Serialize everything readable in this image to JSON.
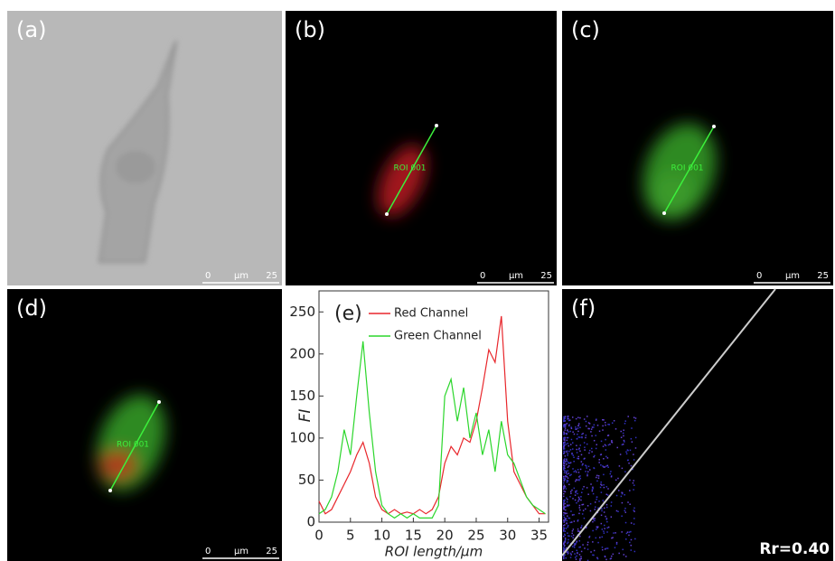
{
  "panels": [
    {
      "label": "(a)",
      "scale_bar": {
        "start": "0",
        "unit": "μm",
        "end": "25"
      }
    },
    {
      "label": "(b)",
      "roi": "ROI 001",
      "scale_bar": {
        "start": "0",
        "unit": "μm",
        "end": "25"
      }
    },
    {
      "label": "(c)",
      "roi": "ROI 001",
      "scale_bar": {
        "start": "0",
        "unit": "μm",
        "end": "25"
      }
    },
    {
      "label": "(d)",
      "roi": "ROI 001",
      "scale_bar": {
        "start": "0",
        "unit": "μm",
        "end": "25"
      }
    },
    {
      "label": "(f)",
      "coefficient": "Rr=0.40"
    }
  ],
  "chart_data": {
    "type": "line",
    "label": "(e)",
    "x_label": "ROI length/μm",
    "y_label": "FI",
    "x": [
      0,
      1,
      2,
      3,
      4,
      5,
      6,
      7,
      8,
      9,
      10,
      11,
      12,
      13,
      14,
      15,
      16,
      17,
      18,
      19,
      20,
      21,
      22,
      23,
      24,
      25,
      26,
      27,
      28,
      29,
      30,
      31,
      32,
      33,
      34,
      35,
      36
    ],
    "series": [
      {
        "name": "Red Channel",
        "color": "#e8262b",
        "values": [
          25,
          10,
          15,
          30,
          45,
          60,
          80,
          95,
          70,
          30,
          15,
          10,
          15,
          10,
          12,
          10,
          15,
          10,
          15,
          30,
          70,
          90,
          80,
          100,
          95,
          120,
          160,
          205,
          190,
          245,
          120,
          60,
          45,
          30,
          20,
          10,
          10
        ]
      },
      {
        "name": "Green Channel",
        "color": "#2bd62b",
        "values": [
          10,
          15,
          30,
          60,
          110,
          80,
          150,
          215,
          130,
          60,
          20,
          10,
          5,
          10,
          5,
          10,
          5,
          5,
          5,
          20,
          150,
          170,
          120,
          160,
          100,
          130,
          80,
          110,
          60,
          120,
          80,
          70,
          50,
          30,
          20,
          15,
          10
        ]
      }
    ],
    "xlim": [
      0,
      36.5
    ],
    "xticks": [
      0,
      5,
      10,
      15,
      20,
      25,
      30,
      35
    ],
    "ylim": [
      0,
      275
    ],
    "yticks": [
      0,
      50,
      100,
      150,
      200,
      250
    ]
  }
}
